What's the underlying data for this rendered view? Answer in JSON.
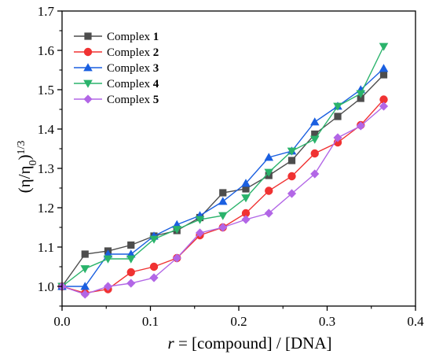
{
  "chart_data": {
    "type": "line",
    "ylabel_main": "(η/η",
    "ylabel_sub": "0",
    "ylabel_end": ")",
    "ylabel_sup": "1/3",
    "xlabel_italic": "r",
    "xlabel_rest": " = [compound] / [DNA]",
    "xlim": [
      0,
      0.4
    ],
    "ylim": [
      0.95,
      1.7
    ],
    "xticks": [
      "0.0",
      "0.1",
      "0.2",
      "0.3",
      "0.4"
    ],
    "yticks": [
      "1.0",
      "1.1",
      "1.2",
      "1.3",
      "1.4",
      "1.5",
      "1.6",
      "1.7"
    ],
    "legend_position": "top-left",
    "grid": false,
    "x": [
      0.0,
      0.026,
      0.052,
      0.078,
      0.104,
      0.13,
      0.156,
      0.182,
      0.208,
      0.234,
      0.26,
      0.286,
      0.312,
      0.338,
      0.364
    ],
    "series": [
      {
        "prefix": "Complex ",
        "num": "1",
        "color": "#4d4d4d",
        "marker": "square",
        "values": [
          1.0,
          1.082,
          1.09,
          1.105,
          1.128,
          1.142,
          1.175,
          1.238,
          1.248,
          1.282,
          1.32,
          1.387,
          1.432,
          1.478,
          1.538
        ]
      },
      {
        "prefix": "Complex ",
        "num": "2",
        "color": "#f03232",
        "marker": "circle",
        "values": [
          1.0,
          0.983,
          0.993,
          1.036,
          1.05,
          1.072,
          1.13,
          1.15,
          1.186,
          1.243,
          1.28,
          1.338,
          1.366,
          1.41,
          1.475
        ]
      },
      {
        "prefix": "Complex ",
        "num": "3",
        "color": "#1a5fe0",
        "marker": "triangle-up",
        "values": [
          1.0,
          1.0,
          1.082,
          1.082,
          1.128,
          1.157,
          1.18,
          1.216,
          1.262,
          1.328,
          1.344,
          1.418,
          1.458,
          1.5,
          1.554
        ]
      },
      {
        "prefix": "Complex ",
        "num": "4",
        "color": "#2ab36b",
        "marker": "triangle-down",
        "values": [
          1.0,
          1.045,
          1.07,
          1.07,
          1.12,
          1.145,
          1.17,
          1.18,
          1.225,
          1.29,
          1.344,
          1.374,
          1.458,
          1.49,
          1.61
        ]
      },
      {
        "prefix": "Complex ",
        "num": "5",
        "color": "#b266e6",
        "marker": "diamond",
        "values": [
          1.0,
          0.98,
          1.0,
          1.008,
          1.022,
          1.072,
          1.136,
          1.15,
          1.17,
          1.186,
          1.236,
          1.286,
          1.378,
          1.408,
          1.458
        ]
      }
    ]
  }
}
